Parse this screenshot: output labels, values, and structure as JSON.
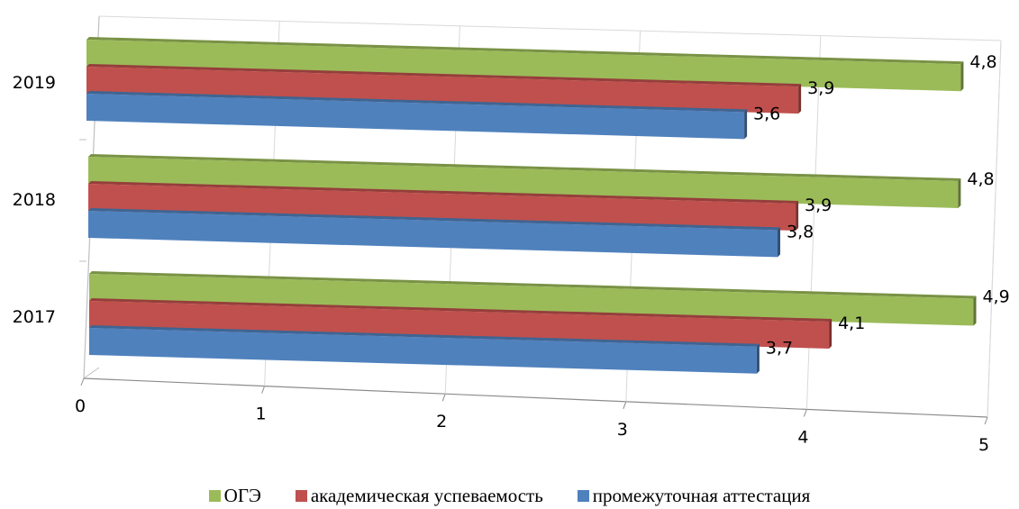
{
  "chart_data": {
    "type": "bar",
    "orientation": "horizontal",
    "style": "3d-perspective",
    "categories": [
      "2017",
      "2018",
      "2019"
    ],
    "series": [
      {
        "name": "ОГЭ",
        "color": "#9BBB59",
        "values": [
          4.9,
          4.8,
          4.8
        ],
        "labels": [
          "4,9",
          "4,8",
          "4,8"
        ]
      },
      {
        "name": "академическая успеваемость",
        "color": "#C0504D",
        "values": [
          4.1,
          3.9,
          3.9
        ],
        "labels": [
          "4,1",
          "3,9",
          "3,9"
        ]
      },
      {
        "name": "промежуточная аттестация",
        "color": "#4F81BD",
        "values": [
          3.7,
          3.8,
          3.6
        ],
        "labels": [
          "3,7",
          "3,8",
          "3,6"
        ]
      }
    ],
    "x_ticks": [
      "0",
      "1",
      "2",
      "3",
      "4",
      "5"
    ],
    "xlim": [
      0,
      5
    ],
    "grid": true,
    "legend_position": "bottom"
  }
}
